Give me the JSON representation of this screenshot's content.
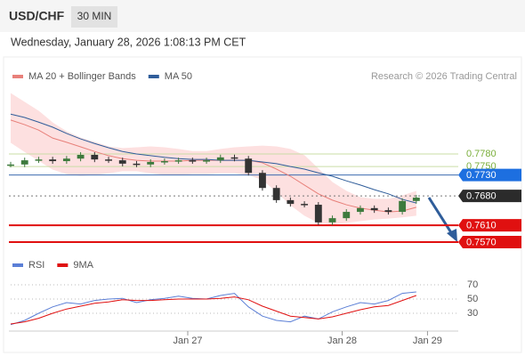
{
  "header": {
    "symbol": "USD/CHF",
    "interval": "30 MIN",
    "datetime": "Wednesday, January 28, 2026 1:08:13 PM CET",
    "credit": "Research © 2026 Trading Central"
  },
  "chart_data": [
    {
      "type": "candlestick",
      "close": [
        0.7755,
        0.7765,
        0.7767,
        0.7763,
        0.7769,
        0.7778,
        0.7767,
        0.7765,
        0.7757,
        0.7755,
        0.7761,
        0.7763,
        0.7765,
        0.7763,
        0.7765,
        0.7772,
        0.7769,
        0.7735,
        0.7699,
        0.767,
        0.7661,
        0.7659,
        0.7617,
        0.7627,
        0.7642,
        0.7651,
        0.7646,
        0.7642,
        0.7668,
        0.7676
      ],
      "up_color": "#3d7a3d",
      "down_color": "#333333",
      "overlays": [
        {
          "name": "MA 20 + Bollinger Bands",
          "color": "#e8807a",
          "band_color": "#fde0e0",
          "values": [
            0.7861,
            0.785,
            0.7837,
            0.7818,
            0.7808,
            0.7797,
            0.7786,
            0.7776,
            0.7769,
            0.7765,
            0.7763,
            0.7763,
            0.7763,
            0.7765,
            0.7765,
            0.7765,
            0.7765,
            0.7765,
            0.7759,
            0.7744,
            0.7727,
            0.7706,
            0.7685,
            0.767,
            0.7659,
            0.7651,
            0.7646,
            0.7642,
            0.7644,
            0.7653
          ],
          "upper": [
            0.7924,
            0.7903,
            0.7882,
            0.7854,
            0.7833,
            0.7818,
            0.7808,
            0.7797,
            0.7793,
            0.7795,
            0.7797,
            0.7795,
            0.7791,
            0.7786,
            0.7786,
            0.7791,
            0.7795,
            0.7797,
            0.7799,
            0.7797,
            0.7791,
            0.7776,
            0.7744,
            0.7712,
            0.7691,
            0.7676,
            0.7672,
            0.7672,
            0.768,
            0.7691
          ],
          "lower": [
            0.7808,
            0.7786,
            0.7765,
            0.7744,
            0.7733,
            0.7729,
            0.7731,
            0.7735,
            0.774,
            0.774,
            0.7735,
            0.7731,
            0.7731,
            0.7733,
            0.7733,
            0.7735,
            0.7735,
            0.7731,
            0.7719,
            0.7691,
            0.7659,
            0.7634,
            0.7617,
            0.7613,
            0.7617,
            0.7621,
            0.7625,
            0.7627,
            0.763,
            0.7634
          ]
        },
        {
          "name": "MA 50",
          "color": "#2f5d9a",
          "values": [
            0.7875,
            0.7867,
            0.7856,
            0.7844,
            0.7829,
            0.7816,
            0.7805,
            0.7795,
            0.7786,
            0.778,
            0.7776,
            0.7772,
            0.7769,
            0.7767,
            0.7767,
            0.7765,
            0.7765,
            0.7765,
            0.7761,
            0.7757,
            0.775,
            0.7744,
            0.7735,
            0.7727,
            0.7716,
            0.7706,
            0.7695,
            0.7685,
            0.7672,
            0.7663
          ]
        }
      ],
      "levels": [
        {
          "value": 0.778,
          "label": "0.7780",
          "color": "#7aae3a",
          "line_color": "#c9dda6",
          "style": "text"
        },
        {
          "value": 0.775,
          "label": "0.7750",
          "color": "#7aae3a",
          "line_color": "#c9dda6",
          "style": "text"
        },
        {
          "value": 0.773,
          "label": "0.7730",
          "color": "#1d6fe0",
          "line_color": "#3b6cb0",
          "style": "box"
        },
        {
          "value": 0.768,
          "label": "0.7680",
          "color": "#2b2b2b",
          "line_color": "#777777",
          "style": "box-dotted"
        },
        {
          "value": 0.761,
          "label": "0.7610",
          "color": "#e01010",
          "line_color": "#e01010",
          "style": "box-thick"
        },
        {
          "value": 0.757,
          "label": "0.7570",
          "color": "#e01010",
          "line_color": "#e01010",
          "style": "box-thick"
        }
      ],
      "xlim": [
        0,
        32
      ],
      "ylim": [
        0.7553,
        0.7935
      ]
    },
    {
      "type": "line",
      "series": [
        {
          "name": "RSI",
          "color": "#5b7fd6",
          "values": [
            14,
            20,
            30,
            39,
            45,
            43,
            48,
            50,
            51,
            45,
            49,
            51,
            54,
            51,
            50,
            55,
            58,
            39,
            26,
            20,
            18,
            26,
            22,
            32,
            39,
            45,
            43,
            48,
            58,
            60
          ]
        },
        {
          "name": "9MA",
          "color": "#e01010",
          "values": [
            15,
            18,
            23,
            30,
            36,
            40,
            44,
            46,
            49,
            48,
            48,
            49,
            50,
            50,
            50,
            51,
            53,
            49,
            40,
            33,
            26,
            24,
            22,
            25,
            30,
            35,
            39,
            41,
            48,
            55
          ]
        }
      ],
      "xlim": [
        0,
        32
      ],
      "ylim": [
        10,
        80
      ],
      "yticks": [
        30,
        50,
        70
      ],
      "xticks": [
        {
          "value": 12.66,
          "label": "Jan 27"
        },
        {
          "value": 23.7,
          "label": "Jan 28"
        },
        {
          "value": 29.8,
          "label": "Jan 29"
        }
      ]
    }
  ]
}
